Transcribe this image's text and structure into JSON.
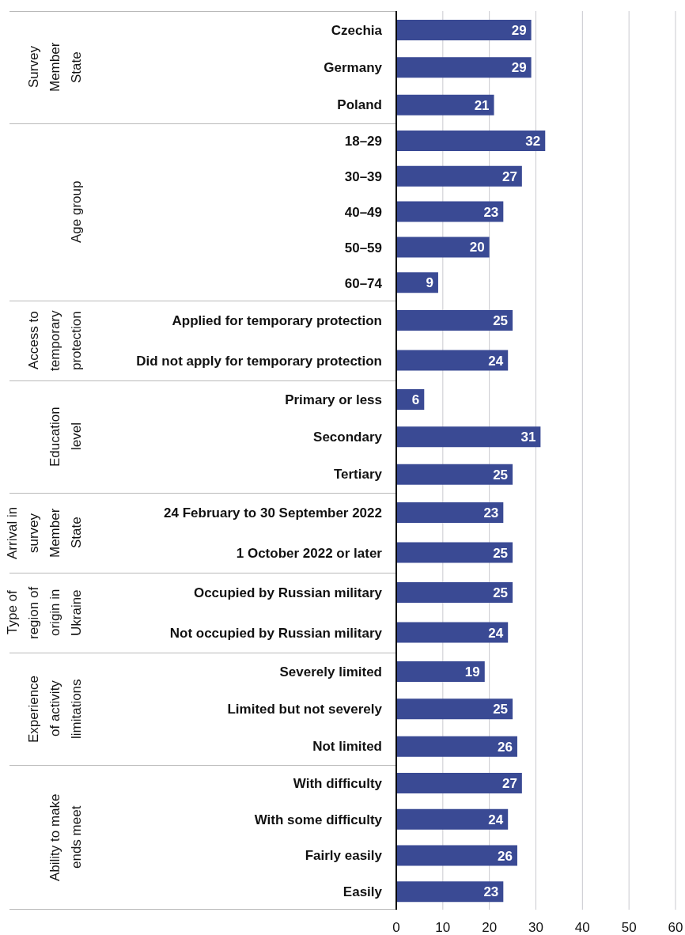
{
  "chart_data": [
    {
      "type": "bar",
      "orientation": "horizontal",
      "ylabel": "Survey\nMember\nState",
      "categories": [
        "Czechia",
        "Germany",
        "Poland"
      ],
      "values": [
        29,
        29,
        21
      ],
      "color": "#3a4a94",
      "data_labels": true,
      "xlim": [
        0,
        60
      ],
      "xticks": [
        0,
        10,
        20,
        30,
        40,
        50,
        60
      ],
      "grid": "x",
      "tick_labels": "y"
    },
    {
      "type": "bar",
      "orientation": "horizontal",
      "ylabel": "Age group",
      "categories": [
        "18–29",
        "30–39",
        "40–49",
        "50–59",
        "60–74"
      ],
      "values": [
        32,
        27,
        23,
        20,
        9
      ],
      "color": "#3a4a94",
      "data_labels": true,
      "xlim": [
        0,
        60
      ],
      "xticks": [
        0,
        10,
        20,
        30,
        40,
        50,
        60
      ],
      "grid": "x",
      "tick_labels": "y"
    },
    {
      "type": "bar",
      "orientation": "horizontal",
      "ylabel": "Access to\ntemporary\nprotection",
      "categories": [
        "Applied for temporary protection",
        "Did not apply for temporary protection"
      ],
      "values": [
        25,
        24
      ],
      "color": "#3a4a94",
      "data_labels": true,
      "xlim": [
        0,
        60
      ],
      "xticks": [
        0,
        10,
        20,
        30,
        40,
        50,
        60
      ],
      "grid": "x",
      "tick_labels": "y"
    },
    {
      "type": "bar",
      "orientation": "horizontal",
      "ylabel": "Education\nlevel",
      "categories": [
        "Primary or less",
        "Secondary",
        "Tertiary"
      ],
      "values": [
        6,
        31,
        25
      ],
      "color": "#3a4a94",
      "data_labels": true,
      "xlim": [
        0,
        60
      ],
      "xticks": [
        0,
        10,
        20,
        30,
        40,
        50,
        60
      ],
      "grid": "x",
      "tick_labels": "y"
    },
    {
      "type": "bar",
      "orientation": "horizontal",
      "ylabel": "Arrival in\nsurvey\nMember\nState",
      "categories": [
        "24 February to 30 September 2022",
        "1 October 2022 or later"
      ],
      "values": [
        23,
        25
      ],
      "color": "#3a4a94",
      "data_labels": true,
      "xlim": [
        0,
        60
      ],
      "xticks": [
        0,
        10,
        20,
        30,
        40,
        50,
        60
      ],
      "grid": "x",
      "tick_labels": "y"
    },
    {
      "type": "bar",
      "orientation": "horizontal",
      "ylabel": "Type of\nregion of\norigin in\nUkraine",
      "categories": [
        "Occupied by Russian military",
        "Not occupied by Russian military"
      ],
      "values": [
        25,
        24
      ],
      "color": "#3a4a94",
      "data_labels": true,
      "xlim": [
        0,
        60
      ],
      "xticks": [
        0,
        10,
        20,
        30,
        40,
        50,
        60
      ],
      "grid": "x",
      "tick_labels": "y"
    },
    {
      "type": "bar",
      "orientation": "horizontal",
      "ylabel": "Experience\nof activity\nlimitations",
      "categories": [
        "Severely limited",
        "Limited but not severely",
        "Not limited"
      ],
      "values": [
        19,
        25,
        26
      ],
      "color": "#3a4a94",
      "data_labels": true,
      "xlim": [
        0,
        60
      ],
      "xticks": [
        0,
        10,
        20,
        30,
        40,
        50,
        60
      ],
      "grid": "x",
      "tick_labels": "y"
    },
    {
      "type": "bar",
      "orientation": "horizontal",
      "ylabel": "Ability to make\nends meet",
      "categories": [
        "With difficulty",
        "With some difficulty",
        "Fairly easily",
        "Easily"
      ],
      "values": [
        27,
        24,
        26,
        23
      ],
      "color": "#3a4a94",
      "data_labels": true,
      "xlim": [
        0,
        60
      ],
      "xticks": [
        0,
        10,
        20,
        30,
        40,
        50,
        60
      ],
      "grid": "x"
    }
  ]
}
